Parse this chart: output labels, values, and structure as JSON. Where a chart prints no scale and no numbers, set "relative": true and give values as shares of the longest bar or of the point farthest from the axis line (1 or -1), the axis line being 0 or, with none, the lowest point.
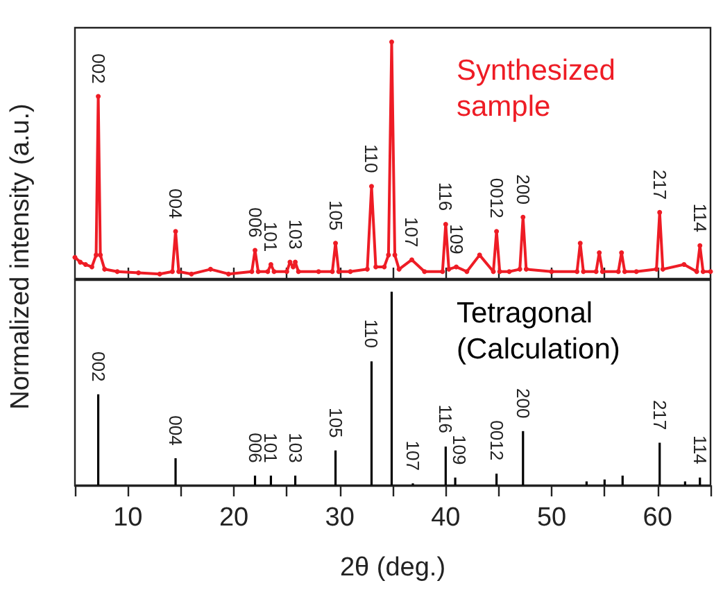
{
  "chart_data": [
    {
      "type": "line",
      "relative": true,
      "ylabel": "Normalized intensity (a.u.)",
      "xlim": [
        5,
        65
      ],
      "xticks": [
        {
          "value": 10,
          "label": null
        },
        {
          "value": 15,
          "label": null
        },
        {
          "value": 20,
          "label": null
        },
        {
          "value": 25,
          "label": null
        },
        {
          "value": 30,
          "label": null
        },
        {
          "value": 35,
          "label": null
        },
        {
          "value": 40,
          "label": null
        },
        {
          "value": 45,
          "label": null
        },
        {
          "value": 50,
          "label": null
        },
        {
          "value": 55,
          "label": null
        },
        {
          "value": 60,
          "label": null
        }
      ],
      "tick_labels": false,
      "grid": false,
      "legend": false,
      "marker": "circle",
      "line_style": "solid",
      "x": [
        5,
        5.5,
        6,
        6.6,
        7.0,
        7.2,
        7.4,
        7.8,
        9,
        11,
        13,
        14.2,
        14.5,
        14.8,
        16,
        17.8,
        19.5,
        21.7,
        22.0,
        22.3,
        23.2,
        23.5,
        23.8,
        25.0,
        25.3,
        25.6,
        25.8,
        26.1,
        28,
        29.3,
        29.6,
        29.9,
        31,
        32.6,
        33.0,
        33.4,
        34.2,
        34.6,
        34.9,
        35.2,
        35.6,
        36.8,
        38,
        39.7,
        40.0,
        40.3,
        41.0,
        42,
        43.2,
        44.5,
        44.8,
        45.1,
        46,
        47.0,
        47.3,
        47.6,
        50,
        52.4,
        52.7,
        53.0,
        54.2,
        54.5,
        54.8,
        56.3,
        56.6,
        56.9,
        58,
        59.9,
        60.2,
        60.5,
        62.5,
        63.7,
        64.0,
        64.3,
        65
      ],
      "series": [
        {
          "name": "Synthesized sample",
          "color": "#ee1c25",
          "values": [
            0.09,
            0.07,
            0.06,
            0.05,
            0.1,
            0.77,
            0.1,
            0.04,
            0.03,
            0.025,
            0.02,
            0.03,
            0.2,
            0.03,
            0.02,
            0.04,
            0.02,
            0.03,
            0.12,
            0.03,
            0.03,
            0.06,
            0.03,
            0.03,
            0.07,
            0.05,
            0.07,
            0.03,
            0.03,
            0.03,
            0.15,
            0.03,
            0.03,
            0.04,
            0.39,
            0.05,
            0.05,
            0.1,
            1,
            0.1,
            0.04,
            0.08,
            0.03,
            0.03,
            0.23,
            0.04,
            0.05,
            0.03,
            0.1,
            0.03,
            0.2,
            0.03,
            0.03,
            0.04,
            0.26,
            0.04,
            0.03,
            0.03,
            0.15,
            0.03,
            0.03,
            0.11,
            0.03,
            0.03,
            0.11,
            0.03,
            0.03,
            0.04,
            0.28,
            0.04,
            0.06,
            0.03,
            0.14,
            0.03,
            0.03
          ]
        }
      ],
      "annotations": [
        {
          "text": "002",
          "x": 7.2,
          "y": 0.77
        },
        {
          "text": "004",
          "x": 14.5,
          "y": 0.2
        },
        {
          "text": "006",
          "x": 22.0,
          "y": 0.12
        },
        {
          "text": "101",
          "x": 23.5,
          "y": 0.06
        },
        {
          "text": "103",
          "x": 25.8,
          "y": 0.07
        },
        {
          "text": "105",
          "x": 29.6,
          "y": 0.15
        },
        {
          "text": "110",
          "x": 33.0,
          "y": 0.39
        },
        {
          "text": "107",
          "x": 36.8,
          "y": 0.08
        },
        {
          "text": "116",
          "x": 40.0,
          "y": 0.23
        },
        {
          "text": "109",
          "x": 41.0,
          "y": 0.05
        },
        {
          "text": "0012",
          "x": 44.8,
          "y": 0.2
        },
        {
          "text": "200",
          "x": 47.3,
          "y": 0.26
        },
        {
          "text": "217",
          "x": 60.2,
          "y": 0.28
        },
        {
          "text": "114",
          "x": 64.0,
          "y": 0.14
        }
      ]
    },
    {
      "type": "bar",
      "relative": true,
      "xlabel": "2θ (deg.)",
      "xlim": [
        5,
        65
      ],
      "xticks": [
        {
          "value": 5,
          "label": null
        },
        10,
        {
          "value": 15,
          "label": null
        },
        20,
        {
          "value": 25,
          "label": null
        },
        30,
        {
          "value": 35,
          "label": null
        },
        40,
        {
          "value": 45,
          "label": null
        },
        50,
        {
          "value": 55,
          "label": null
        },
        60,
        {
          "value": 65,
          "label": null
        }
      ],
      "tick_labels": "x",
      "grid": false,
      "legend": false,
      "x": [
        7.2,
        14.5,
        22.0,
        23.5,
        25.8,
        29.6,
        33.0,
        34.9,
        36.9,
        40.0,
        40.9,
        44.8,
        47.3,
        53.3,
        55.0,
        56.7,
        60.2,
        62.6,
        64.0
      ],
      "series": [
        {
          "name": "Tetragonal (Calculation)",
          "color": "#000000",
          "values": [
            0.47,
            0.14,
            0.05,
            0.05,
            0.05,
            0.18,
            0.64,
            1,
            0.01,
            0.2,
            0.04,
            0.06,
            0.28,
            0.02,
            0.03,
            0.05,
            0.22,
            0.02,
            0.04
          ]
        }
      ],
      "annotations": [
        {
          "text": "002",
          "x": 7.2,
          "y": 0.47
        },
        {
          "text": "004",
          "x": 14.5,
          "y": 0.14
        },
        {
          "text": "006",
          "x": 22.0,
          "y": 0.05
        },
        {
          "text": "101",
          "x": 23.5,
          "y": 0.05
        },
        {
          "text": "103",
          "x": 25.8,
          "y": 0.05
        },
        {
          "text": "105",
          "x": 29.6,
          "y": 0.18
        },
        {
          "text": "110",
          "x": 33.0,
          "y": 0.64
        },
        {
          "text": "107",
          "x": 36.9,
          "y": 0.01
        },
        {
          "text": "116",
          "x": 40.0,
          "y": 0.2
        },
        {
          "text": "109",
          "x": 40.9,
          "y": 0.04
        },
        {
          "text": "0012",
          "x": 44.8,
          "y": 0.06
        },
        {
          "text": "200",
          "x": 47.3,
          "y": 0.28
        },
        {
          "text": "217",
          "x": 60.2,
          "y": 0.22
        },
        {
          "text": "114",
          "x": 64.0,
          "y": 0.04
        }
      ]
    }
  ]
}
